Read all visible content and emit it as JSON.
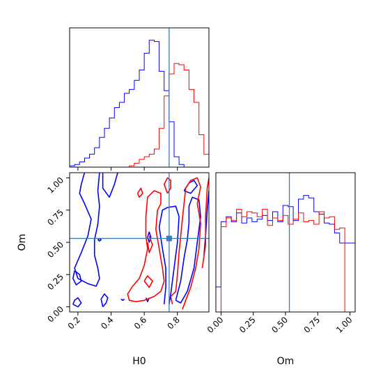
{
  "chart_data": {
    "type": "corner",
    "params": [
      "H0",
      "Om"
    ],
    "truths": {
      "H0": 0.75,
      "Om": 0.53
    },
    "colors": {
      "series_a": "#ff0000",
      "series_b": "#0000ff",
      "truth": "#3b7bbf"
    },
    "axes": {
      "H0": {
        "label": "H0",
        "range": [
          0.15,
          0.99
        ],
        "ticks": [
          0.2,
          0.4,
          0.6,
          0.8
        ],
        "tick_labels": [
          "0.2",
          "0.4",
          "0.6",
          "0.8"
        ]
      },
      "Om": {
        "label": "Om",
        "range": [
          -0.04,
          1.04
        ],
        "ticks": [
          0.0,
          0.25,
          0.5,
          0.75,
          1.0
        ],
        "tick_labels": [
          "0.00",
          "0.25",
          "0.50",
          "0.75",
          "1.00"
        ]
      }
    },
    "hist_H0": {
      "bins": [
        0.15,
        0.18,
        0.21,
        0.24,
        0.27,
        0.3,
        0.33,
        0.36,
        0.39,
        0.42,
        0.45,
        0.48,
        0.51,
        0.54,
        0.57,
        0.6,
        0.63,
        0.66,
        0.69,
        0.72,
        0.75,
        0.78,
        0.81,
        0.84,
        0.87,
        0.9,
        0.93,
        0.96,
        0.99
      ],
      "series": [
        {
          "color": "#0000ff",
          "values": [
            0.01,
            0.02,
            0.04,
            0.07,
            0.1,
            0.15,
            0.23,
            0.3,
            0.38,
            0.46,
            0.5,
            0.57,
            0.6,
            0.67,
            0.75,
            0.88,
            0.98,
            0.97,
            0.74,
            0.59,
            0.35,
            0.08,
            0.02,
            0,
            0,
            0,
            0,
            0
          ]
        },
        {
          "color": "#ff0000",
          "values": [
            0,
            0,
            0,
            0,
            0,
            0,
            0,
            0,
            0,
            0,
            0,
            0,
            0.01,
            0.03,
            0.06,
            0.08,
            0.1,
            0.14,
            0.3,
            0.55,
            0.72,
            0.8,
            0.79,
            0.75,
            0.6,
            0.5,
            0.25,
            0.1
          ]
        }
      ]
    },
    "hist_Om": {
      "bins": [
        -0.04,
        0.0,
        0.04,
        0.08,
        0.12,
        0.16,
        0.2,
        0.24,
        0.28,
        0.32,
        0.36,
        0.4,
        0.44,
        0.48,
        0.52,
        0.56,
        0.6,
        0.64,
        0.68,
        0.72,
        0.76,
        0.8,
        0.84,
        0.88,
        0.92,
        0.96,
        1.0,
        1.04
      ],
      "series": [
        {
          "color": "#0000ff",
          "values": [
            0.2,
            0.72,
            0.76,
            0.72,
            0.79,
            0.71,
            0.75,
            0.72,
            0.74,
            0.77,
            0.73,
            0.8,
            0.72,
            0.85,
            0.84,
            0.73,
            0.9,
            0.93,
            0.91,
            0.8,
            0.78,
            0.71,
            0.7,
            0.63,
            0.55,
            0.55,
            0.55
          ]
        },
        {
          "color": "#ff0000",
          "values": [
            0,
            0.68,
            0.75,
            0.73,
            0.82,
            0.76,
            0.8,
            0.79,
            0.76,
            0.82,
            0.69,
            0.75,
            0.73,
            0.77,
            0.7,
            0.74,
            0.79,
            0.72,
            0.73,
            0.7,
            0.8,
            0.75,
            0.76,
            0.66,
            0.67,
            0,
            0
          ]
        }
      ]
    },
    "contours": [
      {
        "color": "#0000ff",
        "paths": [
          [
            [
              0.24,
              1.04
            ],
            [
              0.22,
              0.95
            ],
            [
              0.21,
              0.88
            ],
            [
              0.24,
              0.8
            ],
            [
              0.28,
              0.68
            ],
            [
              0.26,
              0.55
            ],
            [
              0.22,
              0.42
            ],
            [
              0.18,
              0.3
            ],
            [
              0.2,
              0.22
            ],
            [
              0.26,
              0.18
            ],
            [
              0.31,
              0.16
            ],
            [
              0.33,
              0.22
            ],
            [
              0.32,
              0.3
            ],
            [
              0.3,
              0.4
            ],
            [
              0.3,
              0.52
            ],
            [
              0.32,
              0.64
            ],
            [
              0.33,
              0.78
            ],
            [
              0.32,
              0.9
            ],
            [
              0.33,
              1.04
            ]
          ],
          [
            [
              0.18,
              0.28
            ],
            [
              0.21,
              0.25
            ],
            [
              0.22,
              0.2
            ],
            [
              0.19,
              0.17
            ],
            [
              0.17,
              0.22
            ],
            [
              0.18,
              0.28
            ]
          ],
          [
            [
              0.17,
              0.02
            ],
            [
              0.2,
              0.0
            ],
            [
              0.22,
              0.03
            ],
            [
              0.2,
              0.07
            ],
            [
              0.18,
              0.05
            ],
            [
              0.17,
              0.02
            ]
          ],
          [
            [
              0.35,
              0.0
            ],
            [
              0.37,
              0.03
            ],
            [
              0.38,
              0.07
            ],
            [
              0.36,
              0.1
            ],
            [
              0.34,
              0.06
            ],
            [
              0.35,
              0.0
            ]
          ],
          [
            [
              0.35,
              1.04
            ],
            [
              0.35,
              0.92
            ],
            [
              0.39,
              0.85
            ],
            [
              0.42,
              0.95
            ],
            [
              0.44,
              1.04
            ]
          ],
          [
            [
              0.72,
              0.02
            ],
            [
              0.73,
              0.15
            ],
            [
              0.73,
              0.3
            ],
            [
              0.71,
              0.45
            ],
            [
              0.69,
              0.62
            ],
            [
              0.71,
              0.75
            ],
            [
              0.74,
              0.77
            ],
            [
              0.79,
              0.78
            ],
            [
              0.81,
              0.7
            ],
            [
              0.8,
              0.5
            ],
            [
              0.78,
              0.3
            ],
            [
              0.76,
              0.1
            ],
            [
              0.75,
              0.02
            ]
          ],
          [
            [
              0.79,
              0.05
            ],
            [
              0.82,
              0.2
            ],
            [
              0.84,
              0.38
            ],
            [
              0.86,
              0.52
            ],
            [
              0.87,
              0.65
            ],
            [
              0.87,
              0.78
            ],
            [
              0.89,
              0.85
            ],
            [
              0.93,
              0.83
            ],
            [
              0.94,
              0.7
            ],
            [
              0.92,
              0.5
            ],
            [
              0.9,
              0.3
            ],
            [
              0.86,
              0.12
            ],
            [
              0.82,
              0.03
            ],
            [
              0.79,
              0.05
            ]
          ],
          [
            [
              0.84,
              0.9
            ],
            [
              0.87,
              0.96
            ],
            [
              0.9,
              0.98
            ],
            [
              0.92,
              0.94
            ],
            [
              0.88,
              0.88
            ],
            [
              0.84,
              0.9
            ]
          ],
          [
            [
              0.62,
              0.54
            ],
            [
              0.63,
              0.5
            ],
            [
              0.64,
              0.54
            ],
            [
              0.63,
              0.58
            ],
            [
              0.62,
              0.54
            ]
          ],
          [
            [
              0.61,
              0.07
            ],
            [
              0.62,
              0.04
            ],
            [
              0.63,
              0.07
            ]
          ],
          [
            [
              0.46,
              0.06
            ],
            [
              0.47,
              0.05
            ],
            [
              0.48,
              0.06
            ]
          ],
          [
            [
              0.96,
              0.4
            ],
            [
              0.97,
              0.55
            ],
            [
              0.98,
              0.75
            ],
            [
              0.99,
              0.9
            ]
          ],
          [
            [
              0.32,
              0.52
            ],
            [
              0.33,
              0.53
            ],
            [
              0.34,
              0.52
            ],
            [
              0.33,
              0.51
            ],
            [
              0.32,
              0.52
            ]
          ]
        ]
      },
      {
        "color": "#ff0000",
        "paths": [
          [
            [
              0.61,
              0.55
            ],
            [
              0.61,
              0.7
            ],
            [
              0.62,
              0.85
            ],
            [
              0.66,
              0.9
            ],
            [
              0.7,
              0.88
            ],
            [
              0.7,
              0.8
            ],
            [
              0.68,
              0.75
            ],
            [
              0.67,
              0.6
            ],
            [
              0.69,
              0.45
            ],
            [
              0.71,
              0.3
            ],
            [
              0.72,
              0.2
            ],
            [
              0.7,
              0.12
            ],
            [
              0.66,
              0.08
            ],
            [
              0.6,
              0.05
            ],
            [
              0.55,
              0.04
            ],
            [
              0.51,
              0.05
            ],
            [
              0.5,
              0.1
            ],
            [
              0.53,
              0.16
            ],
            [
              0.57,
              0.22
            ],
            [
              0.6,
              0.32
            ],
            [
              0.62,
              0.45
            ],
            [
              0.61,
              0.55
            ]
          ],
          [
            [
              0.77,
              0.02
            ],
            [
              0.76,
              0.08
            ],
            [
              0.79,
              0.12
            ],
            [
              0.8,
              0.25
            ],
            [
              0.81,
              0.42
            ],
            [
              0.82,
              0.55
            ],
            [
              0.83,
              0.68
            ],
            [
              0.84,
              0.8
            ],
            [
              0.85,
              0.92
            ],
            [
              0.88,
              0.98
            ],
            [
              0.92,
              1.0
            ],
            [
              0.94,
              0.93
            ],
            [
              0.92,
              0.8
            ],
            [
              0.94,
              0.65
            ],
            [
              0.93,
              0.45
            ],
            [
              0.91,
              0.3
            ],
            [
              0.88,
              0.15
            ],
            [
              0.85,
              0.05
            ],
            [
              0.83,
              -0.02
            ]
          ],
          [
            [
              0.74,
              0.88
            ],
            [
              0.76,
              0.92
            ],
            [
              0.76,
              0.98
            ],
            [
              0.74,
              1.0
            ],
            [
              0.72,
              0.95
            ],
            [
              0.74,
              0.88
            ]
          ],
          [
            [
              0.56,
              0.88
            ],
            [
              0.58,
              0.92
            ],
            [
              0.59,
              0.88
            ],
            [
              0.57,
              0.85
            ],
            [
              0.56,
              0.88
            ]
          ],
          [
            [
              0.62,
              0.5
            ],
            [
              0.63,
              0.42
            ],
            [
              0.65,
              0.48
            ],
            [
              0.63,
              0.55
            ]
          ],
          [
            [
              0.95,
              0.3
            ],
            [
              0.97,
              0.48
            ],
            [
              0.97,
              0.7
            ],
            [
              0.98,
              0.92
            ],
            [
              0.99,
              1.0
            ]
          ],
          [
            [
              0.6,
              0.2
            ],
            [
              0.63,
              0.15
            ],
            [
              0.65,
              0.2
            ],
            [
              0.62,
              0.24
            ],
            [
              0.6,
              0.2
            ]
          ]
        ]
      }
    ]
  }
}
